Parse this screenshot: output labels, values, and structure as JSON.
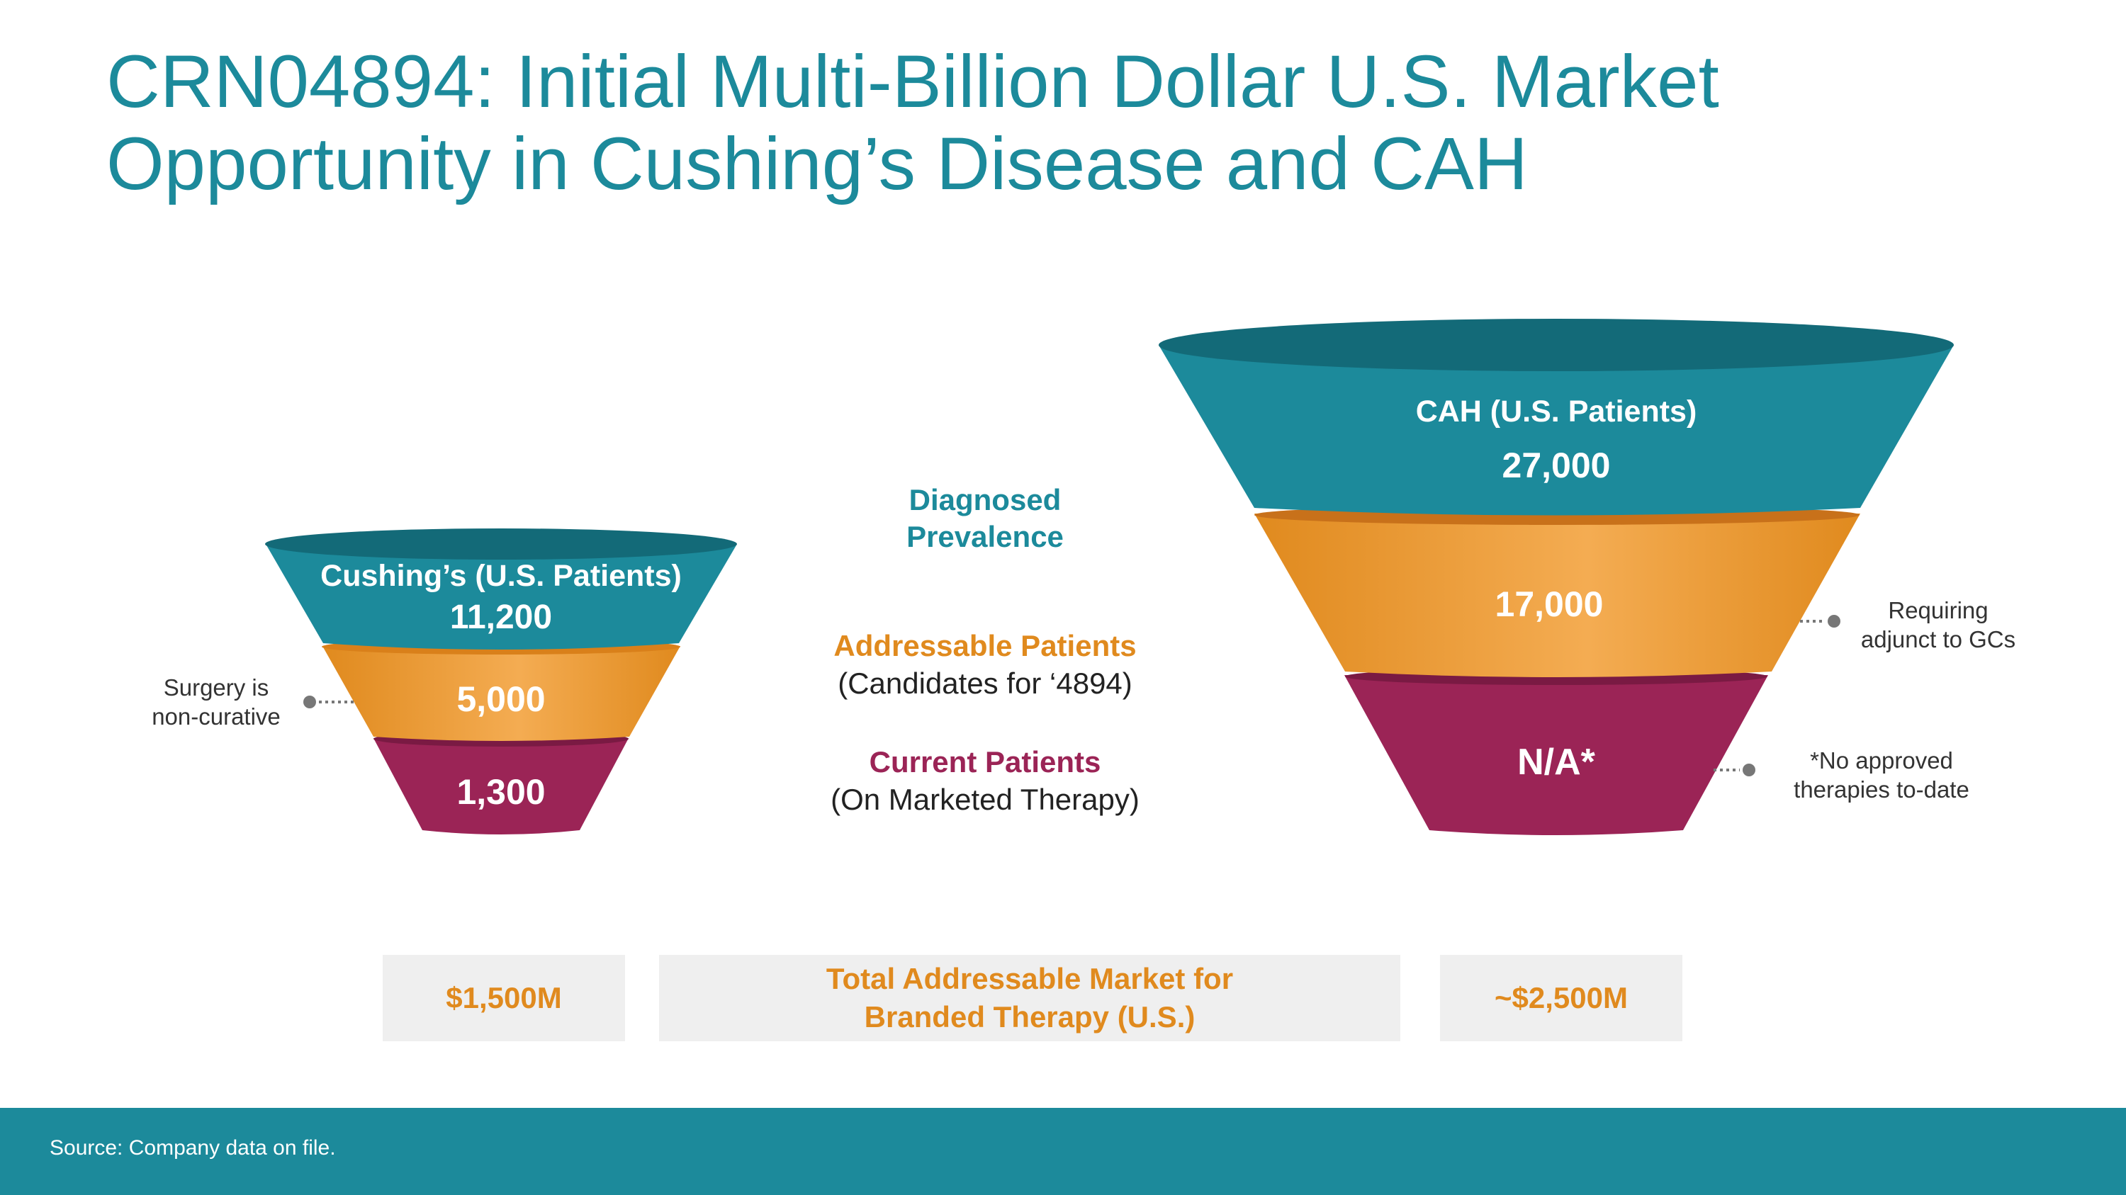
{
  "title": {
    "line1": "CRN04894: Initial Multi-Billion Dollar U.S. Market",
    "line2": "Opportunity in Cushing’s Disease and CAH"
  },
  "colors": {
    "teal": "#1c8a9b",
    "teal_dark": "#136a78",
    "orange": "#e08a1e",
    "orange_light": "#f2a84a",
    "magenta": "#9b2456",
    "magenta_dark": "#7a1a43",
    "box_gray": "#efefef"
  },
  "cushings_funnel": {
    "header": "Cushing’s (U.S. Patients)",
    "diagnosed": "11,200",
    "addressable": "5,000",
    "current": "1,300",
    "note": {
      "line1": "Surgery is",
      "line2": "non-curative"
    }
  },
  "cah_funnel": {
    "header": "CAH (U.S. Patients)",
    "diagnosed": "27,000",
    "addressable": "17,000",
    "current": "N/A*",
    "note_addressable": {
      "line1": "Requiring",
      "line2": "adjunct to GCs"
    },
    "note_current": {
      "line1": "*No approved",
      "line2": "therapies to-date"
    }
  },
  "legend": {
    "diagnosed": {
      "line1": "Diagnosed",
      "line2": "Prevalence"
    },
    "addressable": {
      "title": "Addressable Patients",
      "subtitle": "(Candidates for ‘4894)"
    },
    "current": {
      "title": "Current Patients",
      "subtitle": "(On Marketed Therapy)"
    }
  },
  "tam": {
    "cushings_value": "$1,500M",
    "label_line1": "Total Addressable Market for",
    "label_line2": "Branded Therapy (U.S.)",
    "cah_value": "~$2,500M"
  },
  "footer": {
    "source": "Source: Company data on file."
  }
}
